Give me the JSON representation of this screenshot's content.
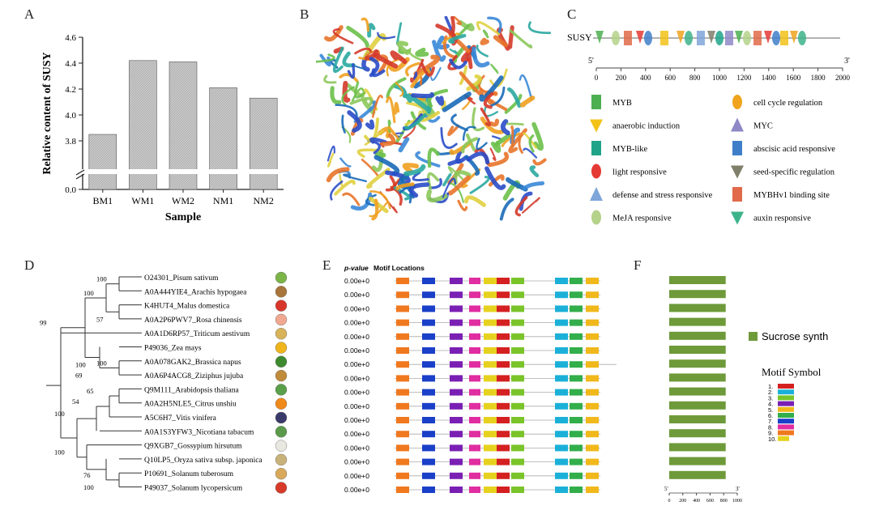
{
  "panels": {
    "a": "A",
    "b": "B",
    "c": "C",
    "d": "D",
    "e": "E",
    "f": "F"
  },
  "colors": {
    "bar_fill": "#c8c8c8",
    "bar_stroke": "#555555",
    "axis": "#222222",
    "f_bar": "#6e9a3a"
  },
  "chart_data": [
    {
      "panel": "A",
      "type": "bar",
      "ylabel": "Relative content of SUSY",
      "xlabel": "Sample",
      "categories": [
        "BM1",
        "WM1",
        "WM2",
        "NM1",
        "NM2"
      ],
      "values": [
        3.85,
        4.42,
        4.41,
        4.21,
        4.13
      ],
      "ylim": [
        3.7,
        4.6
      ],
      "axis_break": true,
      "yticks": [
        "4.6",
        "4.4",
        "4.2",
        "4.0",
        "3.8",
        "0.0"
      ],
      "grid": false
    },
    {
      "panel": "F",
      "type": "bar",
      "legend": [
        "Sucrose synth"
      ],
      "legend_title": "Motif Symbol",
      "motif_numbers": [
        "1.",
        "2.",
        "3.",
        "4.",
        "5.",
        "6.",
        "7.",
        "8.",
        "9.",
        "10."
      ],
      "motif_colors": [
        "#d42020",
        "#1bb0d8",
        "#7ac42a",
        "#7a1fb4",
        "#f0b81a",
        "#32ae4a",
        "#1a3fc8",
        "#e02da0",
        "#f0781e",
        "#e6d21e"
      ],
      "axis_ticks": [
        "0",
        "200",
        "400",
        "600",
        "800",
        "1000"
      ],
      "axis_end_labels": [
        "5'",
        "3'"
      ],
      "rows": 15,
      "bar_length": 830,
      "axis_max": 1000
    }
  ],
  "panel_c": {
    "gene": "SUSY",
    "end5": "5'",
    "end3": "3'",
    "ticks": [
      "0",
      "200",
      "400",
      "600",
      "800",
      "1000",
      "1200",
      "1400",
      "1600",
      "1800",
      "2000"
    ],
    "legend_left": [
      "MYB",
      "anaerobic induction",
      "MYB-like",
      "light responsive",
      "defense and stress responsive",
      "MeJA responsive"
    ],
    "legend_right": [
      "cell cycle regulation",
      "MYC",
      "abscisic acid responsive",
      "seed-specific regulation",
      "MYBHv1 binding site",
      "auxin responsive"
    ],
    "element_colors": [
      "#4caf50",
      "#f2c218",
      "#1fa489",
      "#e53935",
      "#7fa6d9",
      "#b4d28a",
      "#f0a31c",
      "#8e88c7",
      "#3f7fc9",
      "#7f7f6a",
      "#e06a4a",
      "#3db38a"
    ]
  },
  "panel_d": {
    "taxa": [
      "O24301_Pisum sativum",
      "A0A444YIE4_Arachis hypogaea",
      "K4HUT4_Malus domestica",
      "A0A2P6PWV7_Rosa chinensis",
      "A0A1D6RP57_Triticum aestivum",
      "P49036_Zea mays",
      "A0A078GAK2_Brassica napus",
      "A0A6P4ACG8_Ziziphus jujuba",
      "Q9M111_Arabidopsis thaliana",
      "A0A2H5NLE5_Citrus unshiu",
      "A5C6H7_Vitis vinifera",
      "A0A1S3YFW3_Nicotiana tabacum",
      "Q9XGB7_Gossypium hirsutum",
      "Q10LP5_Oryza sativa subsp. japonica",
      "P10691_Solanum tuberosum",
      "P49037_Solanum lycopersicum"
    ],
    "bootstrap": [
      "100",
      "100",
      "57",
      "99",
      "100",
      "69",
      "100",
      "65",
      "54",
      "100",
      "100",
      "76",
      "100"
    ],
    "fruit_colors": [
      "#7bb548",
      "#a8753a",
      "#d8362a",
      "#f0a890",
      "#d8b35a",
      "#f0b51a",
      "#3e8a2e",
      "#c08b3a",
      "#5aa04a",
      "#f08a1a",
      "#3a3a6a",
      "#5a9a4a",
      "#e8e8e0",
      "#c9b27a",
      "#d8a95a",
      "#d83a2a"
    ]
  },
  "panel_e": {
    "header_pvalue": "p-value",
    "header_motif": "Motif Locations",
    "pvalues": [
      "0.00e+0",
      "0.00e+0",
      "0.00e+0",
      "0.00e+0",
      "0.00e+0",
      "0.00e+0",
      "0.00e+0",
      "0.00e+0",
      "0.00e+0",
      "0.00e+0",
      "0.00e+0",
      "0.00e+0",
      "0.00e+0",
      "0.00e+0",
      "0.00e+0",
      "0.00e+0"
    ],
    "block_colors": [
      "#f0781e",
      "#1a3fc8",
      "#7a1fb4",
      "#e02da0",
      "#e6d21e",
      "#d42020",
      "#7ac42a",
      "#1bb0d8",
      "#32ae4a",
      "#f0b81a"
    ]
  }
}
